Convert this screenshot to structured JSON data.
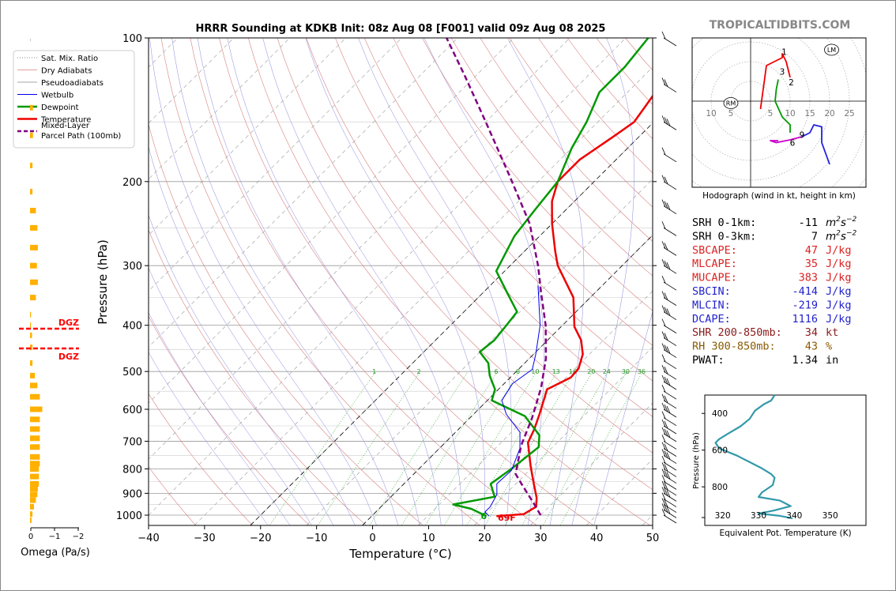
{
  "title": "HRRR Sounding at KDKB Init: 08z Aug 08 [F001] valid 09z Aug 08 2025",
  "watermark": "TROPICALTIDBITS.COM",
  "colors": {
    "temperature": "#ee0000",
    "dewpoint": "#009900",
    "wetbulb": "#0000ee",
    "parcel": "#800080",
    "dgz": "#ff0000",
    "omega": "#ffb000",
    "theta_e": "#3399aa",
    "mixing_ratio": "#33aa33",
    "dry_adiabat": "#d98080",
    "moist_adiabat": "#8888dd"
  },
  "legend": [
    {
      "label": "Sat. Mix. Ratio",
      "style": "dotted-gray"
    },
    {
      "label": "Dry Adiabats",
      "style": "thin-pink"
    },
    {
      "label": "Pseudoadiabats",
      "style": "thin-gray"
    },
    {
      "label": "Wetbulb",
      "style": "thin-blue"
    },
    {
      "label": "Dewpoint",
      "style": "green"
    },
    {
      "label": "Temperature",
      "style": "red"
    },
    {
      "label": "Mixed-Layer",
      "label2": "Parcel Path (100mb)",
      "style": "purple-dashed"
    }
  ],
  "surface": {
    "dewpoint_label": "69F"
  },
  "dgz_label": "DGZ",
  "indices": [
    {
      "label": "SRH 0-1km:",
      "value": "-11",
      "unit": "m2s-2",
      "color": "#000000"
    },
    {
      "label": "SRH 0-3km:",
      "value": "7",
      "unit": "m2s-2",
      "color": "#000000"
    },
    {
      "label": "SBCAPE:",
      "value": "47",
      "unit": "J/kg",
      "color": "#dd2222"
    },
    {
      "label": "MLCAPE:",
      "value": "35",
      "unit": "J/kg",
      "color": "#dd2222"
    },
    {
      "label": "MUCAPE:",
      "value": "383",
      "unit": "J/kg",
      "color": "#dd2222"
    },
    {
      "label": "SBCIN:",
      "value": "-414",
      "unit": "J/kg",
      "color": "#2222cc"
    },
    {
      "label": "MLCIN:",
      "value": "-219",
      "unit": "J/kg",
      "color": "#2222cc"
    },
    {
      "label": "DCAPE:",
      "value": "1116",
      "unit": "J/kg",
      "color": "#2222cc"
    },
    {
      "label": "SHR 200-850mb:",
      "value": "34",
      "unit": "kt",
      "color": "#8b1a1a"
    },
    {
      "label": "RH 300-850mb:",
      "value": "43",
      "unit": "%",
      "color": "#8b5a00"
    },
    {
      "label": "PWAT:",
      "value": "1.34",
      "unit": "in",
      "color": "#000000"
    }
  ],
  "chart_data": [
    {
      "type": "line",
      "name": "skew-t",
      "xlabel": "Temperature (°C)",
      "ylabel": "Pressure (hPa)",
      "xlim": [
        -40,
        50
      ],
      "ylim": [
        1050,
        100
      ],
      "y_scale": "log",
      "skew_deg_per_decade": 45,
      "xticks": [
        -40,
        -30,
        -20,
        -10,
        0,
        10,
        20,
        30,
        40,
        50
      ],
      "yticks": [
        100,
        200,
        300,
        400,
        500,
        600,
        700,
        800,
        900,
        1000
      ],
      "mixing_ratio_labels": [
        "1",
        "2",
        "6",
        "8",
        "10",
        "13",
        "16",
        "20",
        "24",
        "30",
        "36"
      ],
      "series": [
        {
          "name": "Temperature",
          "points": [
            [
              22.3,
              1005
            ],
            [
              26.8,
              995
            ],
            [
              27.7,
              960
            ],
            [
              26.2,
              920
            ],
            [
              23.2,
              860
            ],
            [
              19.5,
              790
            ],
            [
              14.8,
              705
            ],
            [
              13.5,
              660
            ],
            [
              11.8,
              615
            ],
            [
              8.7,
              545
            ],
            [
              10.8,
              515
            ],
            [
              10.6,
              493
            ],
            [
              8.8,
              460
            ],
            [
              6,
              430
            ],
            [
              2.4,
              403
            ],
            [
              -3,
              350
            ],
            [
              -11.5,
              300
            ],
            [
              -14.5,
              280
            ],
            [
              -20,
              245
            ],
            [
              -24,
              220
            ],
            [
              -26.5,
              200
            ],
            [
              -26.5,
              180
            ],
            [
              -24.5,
              160
            ],
            [
              -23.5,
              150
            ],
            [
              -25,
              130
            ],
            [
              -25.5,
              110
            ],
            [
              -27,
              100
            ]
          ]
        },
        {
          "name": "Dewpoint",
          "points": [
            [
              20.5,
              1005
            ],
            [
              16.5,
              970
            ],
            [
              12.5,
              950
            ],
            [
              18.5,
              915
            ],
            [
              15.5,
              860
            ],
            [
              16.5,
              800
            ],
            [
              17.5,
              720
            ],
            [
              15.5,
              680
            ],
            [
              9.5,
              620
            ],
            [
              0.8,
              575
            ],
            [
              -0.6,
              545
            ],
            [
              -4,
              510
            ],
            [
              -6.5,
              480
            ],
            [
              -10,
              455
            ],
            [
              -9.5,
              430
            ],
            [
              -10,
              400
            ],
            [
              -10.5,
              375
            ],
            [
              -16,
              340
            ],
            [
              -21.5,
              308
            ],
            [
              -24.5,
              260
            ],
            [
              -25.5,
              230
            ],
            [
              -26.5,
              200
            ],
            [
              -30,
              170
            ],
            [
              -32,
              150
            ],
            [
              -35,
              130
            ],
            [
              -35,
              115
            ],
            [
              -36,
              100
            ]
          ]
        },
        {
          "name": "Wetbulb",
          "points": [
            [
              21,
              1005
            ],
            [
              19.5,
              985
            ],
            [
              19.5,
              960
            ],
            [
              18.5,
              905
            ],
            [
              16.6,
              860
            ],
            [
              16.8,
              805
            ],
            [
              14.4,
              725
            ],
            [
              11.5,
              670
            ],
            [
              5.9,
              615
            ],
            [
              2.6,
              575
            ],
            [
              1.5,
              530
            ],
            [
              2.5,
              495
            ],
            [
              0.4,
              460
            ],
            [
              -4,
              400
            ],
            [
              -11.5,
              330
            ]
          ]
        },
        {
          "name": "Parcel Path",
          "points": [
            [
              30,
              1000
            ],
            [
              27,
              950
            ],
            [
              21,
              860
            ],
            [
              18.2,
              820
            ],
            [
              14.1,
              715
            ],
            [
              11.1,
              625
            ],
            [
              7.3,
              540
            ],
            [
              3,
              470
            ],
            [
              -3,
              400
            ],
            [
              -9.5,
              343
            ],
            [
              -15,
              300
            ],
            [
              -24,
              245
            ],
            [
              -36,
              195
            ],
            [
              -50,
              150
            ],
            [
              -62,
              120
            ],
            [
              -72,
              100
            ]
          ]
        }
      ]
    },
    {
      "type": "scatter",
      "name": "hodograph",
      "xlabel": "Hodograph (wind in kt, height in km)",
      "ring_labels": [
        "10",
        "5",
        "5",
        "10",
        "15",
        "20",
        "25"
      ],
      "rm_label": "RM",
      "lm_label": "LM",
      "height_labels": [
        "1",
        "2",
        "3",
        "6",
        "9"
      ],
      "rm_point": [
        -5,
        -0.5
      ],
      "lm_point": [
        20.5,
        13
      ],
      "segments": [
        {
          "name": "0-3km",
          "color": "#ee0000",
          "points": [
            [
              2.5,
              -2
            ],
            [
              4,
              9
            ],
            [
              8,
              11
            ],
            [
              8,
              12
            ],
            [
              9,
              10
            ],
            [
              10,
              6
            ]
          ]
        },
        {
          "name": "3-6km",
          "color": "#009900",
          "points": [
            [
              7,
              5.5
            ],
            [
              6.5,
              3
            ],
            [
              6.2,
              0
            ],
            [
              8,
              -4
            ],
            [
              10,
              -6
            ],
            [
              10,
              -8
            ]
          ]
        },
        {
          "name": "6-9km",
          "color": "#cc00cc",
          "points": [
            [
              7,
              -10
            ],
            [
              5,
              -10
            ],
            [
              6.5,
              -10.5
            ],
            [
              10,
              -9.8
            ],
            [
              13,
              -9
            ]
          ]
        },
        {
          "name": "9-12km",
          "color": "#2222dd",
          "points": [
            [
              13,
              -9
            ],
            [
              15,
              -8
            ],
            [
              16,
              -6
            ],
            [
              18,
              -6.5
            ],
            [
              18,
              -10.5
            ],
            [
              20,
              -16
            ]
          ]
        }
      ]
    },
    {
      "type": "line",
      "name": "theta-e",
      "xlabel": "Equivalent Pot. Temperature (K)",
      "ylabel": "Pressure (hPa)",
      "xlim": [
        315,
        360
      ],
      "ylim": [
        1000,
        300
      ],
      "xticks": [
        "320",
        "330",
        "340",
        "350"
      ],
      "yticks": [
        "400",
        "600",
        "800"
      ],
      "series": [
        {
          "name": "theta-e",
          "points": [
            [
              334.5,
              300
            ],
            [
              333.5,
              330
            ],
            [
              331.5,
              350
            ],
            [
              329,
              385
            ],
            [
              327.5,
              430
            ],
            [
              325,
              470
            ],
            [
              321.5,
              510
            ],
            [
              319,
              540
            ],
            [
              318,
              560
            ],
            [
              319,
              590
            ],
            [
              324,
              630
            ],
            [
              327,
              660
            ],
            [
              331,
              700
            ],
            [
              333.5,
              730
            ],
            [
              334.5,
              750
            ],
            [
              334,
              790
            ],
            [
              331,
              830
            ],
            [
              330,
              855
            ],
            [
              336,
              875
            ],
            [
              339,
              905
            ],
            [
              334,
              930
            ],
            [
              330,
              945
            ],
            [
              336,
              958
            ],
            [
              339.5,
              972
            ]
          ]
        }
      ]
    },
    {
      "type": "bar",
      "name": "omega",
      "xlabel": "Omega (Pa/s)",
      "xticks": [
        "0",
        "−1",
        "−2"
      ],
      "bars": [
        [
          101,
          0
        ],
        [
          140,
          0.06
        ],
        [
          160,
          0.06
        ],
        [
          185,
          0.05
        ],
        [
          210,
          0.05
        ],
        [
          230,
          0.12
        ],
        [
          250,
          0.15
        ],
        [
          275,
          0.16
        ],
        [
          300,
          0.14
        ],
        [
          325,
          0.16
        ],
        [
          350,
          0.12
        ],
        [
          380,
          0.02
        ],
        [
          400,
          0.02
        ],
        [
          420,
          0.04
        ],
        [
          445,
          0.05
        ],
        [
          480,
          0.05
        ],
        [
          510,
          0.1
        ],
        [
          535,
          0.15
        ],
        [
          565,
          0.2
        ],
        [
          600,
          0.25
        ],
        [
          630,
          0.2
        ],
        [
          660,
          0.2
        ],
        [
          690,
          0.2
        ],
        [
          720,
          0.2
        ],
        [
          755,
          0.2
        ],
        [
          780,
          0.2
        ],
        [
          800,
          0.18
        ],
        [
          830,
          0.18
        ],
        [
          860,
          0.18
        ],
        [
          880,
          0.16
        ],
        [
          905,
          0.15
        ],
        [
          930,
          0.12
        ],
        [
          960,
          0.08
        ],
        [
          995,
          0.05
        ],
        [
          1025,
          0.03
        ]
      ],
      "dgz_levels": [
        387,
        443
      ]
    }
  ]
}
